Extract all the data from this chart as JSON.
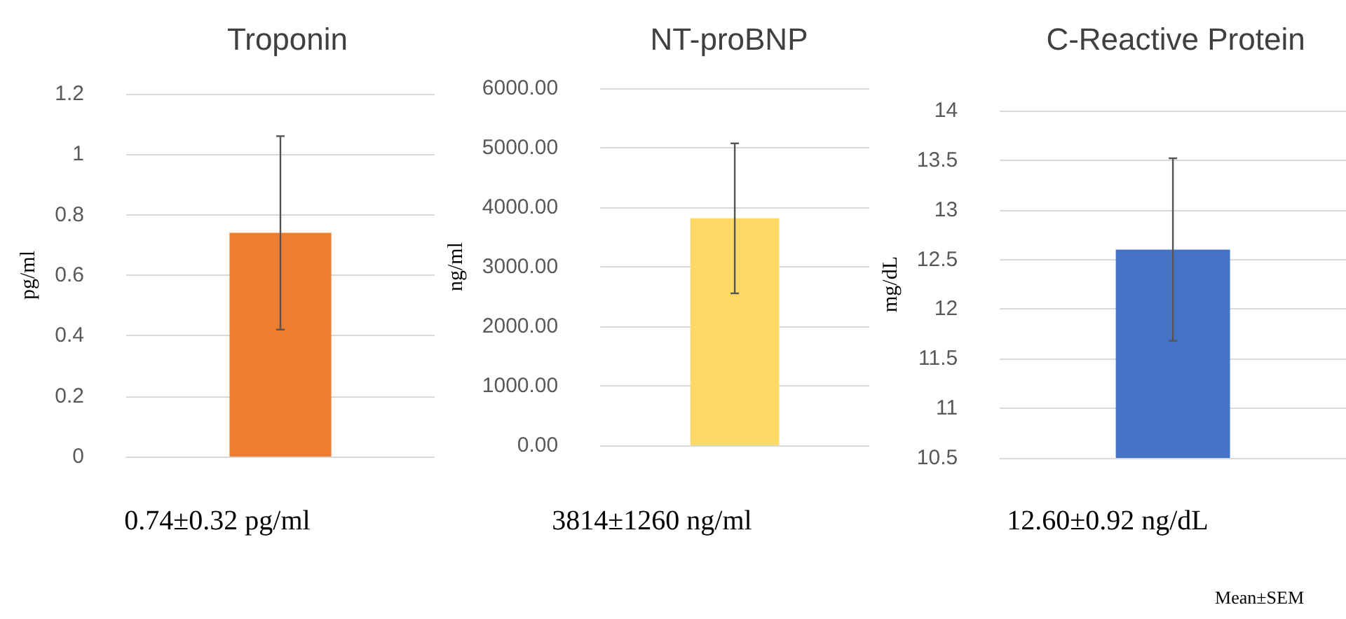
{
  "chart_data": [
    {
      "type": "bar",
      "title": "Troponin",
      "ylabel": "pg/ml",
      "categories": [
        null
      ],
      "values": [
        0.74
      ],
      "errors": [
        0.32
      ],
      "color": "#ed7d31",
      "ylim": [
        0,
        1.2
      ],
      "yticks": [
        0,
        0.2,
        0.4,
        0.6,
        0.8,
        1,
        1.2
      ],
      "grid": "y",
      "annotations": [
        "0.74±0.32 pg/ml"
      ]
    },
    {
      "type": "bar",
      "title": "NT-proBNP",
      "ylabel": "ng/ml",
      "categories": [
        null
      ],
      "values": [
        3814
      ],
      "errors": [
        1260
      ],
      "color": "#ffd966",
      "ylim": [
        0,
        6000
      ],
      "yticks": [
        {
          "value": 0,
          "label": "0.00"
        },
        {
          "value": 1000,
          "label": "1000.00"
        },
        {
          "value": 2000,
          "label": "2000.00"
        },
        {
          "value": 3000,
          "label": "3000.00"
        },
        {
          "value": 4000,
          "label": "4000.00"
        },
        {
          "value": 5000,
          "label": "5000.00"
        },
        {
          "value": 6000,
          "label": "6000.00"
        }
      ],
      "grid": "y",
      "annotations": [
        "3814±1260 ng/ml"
      ]
    },
    {
      "type": "bar",
      "title": "C-Reactive Protein",
      "ylabel": "mg/dL",
      "categories": [
        null
      ],
      "values": [
        12.6
      ],
      "errors": [
        0.92
      ],
      "color": "#4472c4",
      "ylim": [
        10.5,
        14
      ],
      "yticks": [
        10.5,
        11,
        11.5,
        12,
        12.5,
        13,
        13.5,
        14
      ],
      "grid": "y",
      "annotations": [
        "12.60±0.92 ng/dL",
        "Mean±SEM"
      ]
    }
  ]
}
